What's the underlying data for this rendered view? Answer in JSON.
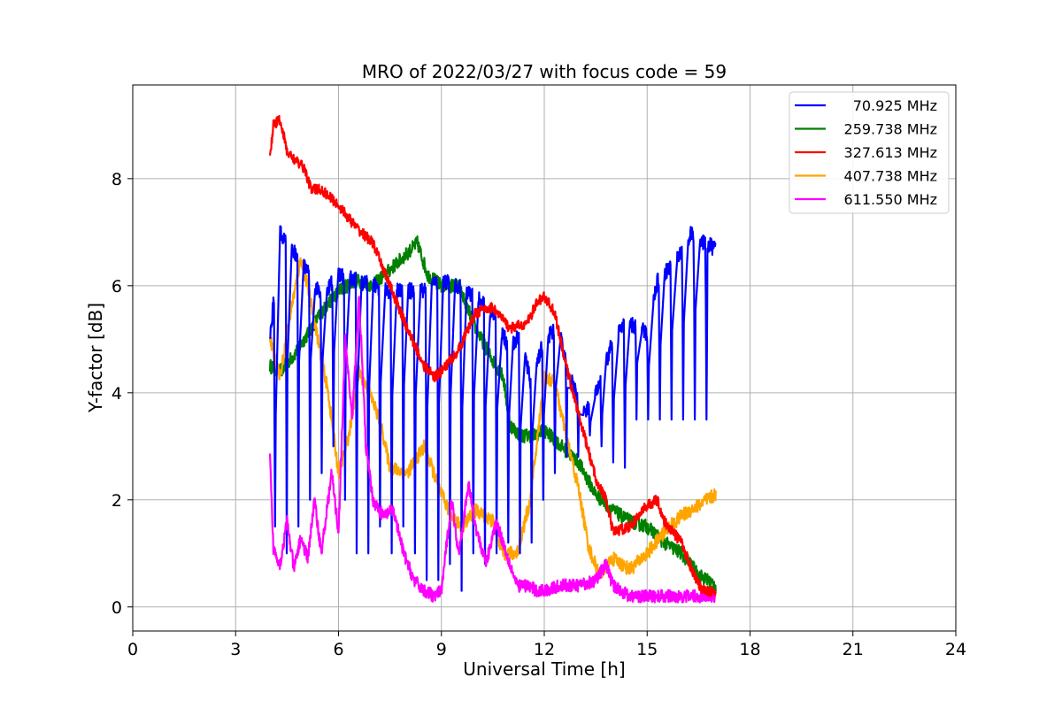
{
  "chart_data": {
    "type": "line",
    "title": "MRO of 2022/03/27 with focus code = 59",
    "xlabel": "Universal Time [h]",
    "ylabel": "Y-factor [dB]",
    "xlim": [
      0,
      24
    ],
    "ylim": [
      -0.45,
      9.75
    ],
    "xticks": [
      0,
      3,
      6,
      9,
      12,
      15,
      18,
      21,
      24
    ],
    "yticks": [
      0,
      2,
      4,
      6,
      8
    ],
    "grid": true,
    "legend_position": "top-right",
    "series": [
      {
        "name": "70.925 MHz",
        "color": "#0000ff",
        "x": [
          4.0,
          4.3,
          4.6,
          5.0,
          5.5,
          6.0,
          6.5,
          7.0,
          7.5,
          8.0,
          8.5,
          9.0,
          9.5,
          10.0,
          10.5,
          11.0,
          11.3,
          11.6,
          12.0,
          12.4,
          12.8,
          13.2,
          13.6,
          14.0,
          14.4,
          14.8,
          15.0,
          15.3,
          15.6,
          16.0,
          16.3,
          16.6,
          17.0
        ],
        "y": [
          5.0,
          7.0,
          6.7,
          6.4,
          5.8,
          6.2,
          6.1,
          6.0,
          5.9,
          5.9,
          5.9,
          6.1,
          6.0,
          5.8,
          5.5,
          4.8,
          5.1,
          4.2,
          5.0,
          5.2,
          4.2,
          3.6,
          4.1,
          5.0,
          5.3,
          5.2,
          5.1,
          6.1,
          6.3,
          6.6,
          7.0,
          6.8,
          6.7
        ],
        "dip_period": 0.34,
        "dip_floor": [
          1.5,
          1.0,
          1.5,
          2.0,
          2.5,
          3.0,
          2.0,
          1.0,
          1.0,
          1.5,
          1.0,
          1.5,
          1.0,
          0.5,
          0.5,
          0.8,
          0.3,
          1.0,
          0.8,
          1.0,
          1.2,
          1.0,
          1.2,
          2.0,
          2.5,
          2.8,
          2.8,
          3.2,
          3.0,
          2.7,
          2.6,
          3.5
        ],
        "noise": 0.15
      },
      {
        "name": "259.738 MHz",
        "color": "#008000",
        "x": [
          4.0,
          4.3,
          4.7,
          5.0,
          5.5,
          6.0,
          6.5,
          7.0,
          7.5,
          8.0,
          8.3,
          8.6,
          9.0,
          9.5,
          10.0,
          10.5,
          10.8,
          11.0,
          11.3,
          11.7,
          12.0,
          12.5,
          13.0,
          13.5,
          14.0,
          14.5,
          15.0,
          15.5,
          16.0,
          16.5,
          17.0
        ],
        "y": [
          4.5,
          4.4,
          4.7,
          5.0,
          5.5,
          5.9,
          6.1,
          6.0,
          6.3,
          6.6,
          6.8,
          6.2,
          6.0,
          6.0,
          5.2,
          4.6,
          4.3,
          3.4,
          3.2,
          3.2,
          3.3,
          3.0,
          2.7,
          2.1,
          1.8,
          1.6,
          1.5,
          1.2,
          1.0,
          0.6,
          0.4
        ],
        "noise": 0.13
      },
      {
        "name": "327.613 MHz",
        "color": "#ff0000",
        "x": [
          4.0,
          4.1,
          4.3,
          4.5,
          4.8,
          5.0,
          5.2,
          5.5,
          6.0,
          6.5,
          7.0,
          7.5,
          8.0,
          8.5,
          8.8,
          9.0,
          9.5,
          10.0,
          10.5,
          11.0,
          11.5,
          11.8,
          12.0,
          12.3,
          12.6,
          13.0,
          13.5,
          13.8,
          14.0,
          14.5,
          15.0,
          15.3,
          15.5,
          16.0,
          16.3,
          16.6,
          17.0
        ],
        "y": [
          8.4,
          9.0,
          9.1,
          8.5,
          8.3,
          8.2,
          7.8,
          7.8,
          7.5,
          7.1,
          6.8,
          6.0,
          5.2,
          4.5,
          4.3,
          4.4,
          4.8,
          5.5,
          5.6,
          5.2,
          5.3,
          5.7,
          5.8,
          5.5,
          4.6,
          3.6,
          2.4,
          2.0,
          1.4,
          1.5,
          1.9,
          2.0,
          1.6,
          1.2,
          0.7,
          0.3,
          0.3
        ],
        "noise": 0.1
      },
      {
        "name": "407.738 MHz",
        "color": "#ffa500",
        "x": [
          4.0,
          4.3,
          4.6,
          4.9,
          5.1,
          5.4,
          5.7,
          6.0,
          6.3,
          6.6,
          6.9,
          7.2,
          7.5,
          8.0,
          8.5,
          9.0,
          9.3,
          9.6,
          10.0,
          10.5,
          10.8,
          11.2,
          11.6,
          12.0,
          12.3,
          12.6,
          13.0,
          13.3,
          13.6,
          14.0,
          14.5,
          15.0,
          15.5,
          16.0,
          16.5,
          17.0
        ],
        "y": [
          5.0,
          4.3,
          5.5,
          6.5,
          6.0,
          5.0,
          4.0,
          2.5,
          3.2,
          4.4,
          4.0,
          3.5,
          2.6,
          2.5,
          3.0,
          2.1,
          1.7,
          1.5,
          1.8,
          1.6,
          1.0,
          1.0,
          2.0,
          4.3,
          4.2,
          3.3,
          2.2,
          1.1,
          0.6,
          0.9,
          0.7,
          1.0,
          1.4,
          1.7,
          1.9,
          2.1
        ],
        "noise": 0.13
      },
      {
        "name": "611.550 MHz",
        "color": "#ff00ff",
        "x": [
          4.0,
          4.1,
          4.3,
          4.5,
          4.7,
          4.9,
          5.1,
          5.3,
          5.5,
          5.8,
          6.0,
          6.2,
          6.4,
          6.6,
          6.8,
          7.0,
          7.3,
          7.6,
          7.9,
          8.2,
          8.5,
          8.8,
          9.0,
          9.3,
          9.5,
          9.8,
          10.0,
          10.3,
          10.6,
          10.9,
          11.2,
          11.5,
          11.8,
          12.0,
          12.5,
          13.0,
          13.5,
          13.8,
          14.0,
          14.5,
          15.0,
          15.5,
          16.0,
          16.5,
          17.0
        ],
        "y": [
          2.8,
          1.1,
          0.8,
          1.6,
          0.7,
          1.3,
          0.9,
          2.0,
          1.0,
          2.5,
          1.4,
          5.0,
          3.5,
          5.8,
          3.0,
          2.0,
          1.7,
          1.8,
          1.0,
          0.5,
          0.3,
          0.2,
          0.3,
          2.0,
          1.0,
          2.3,
          1.5,
          0.8,
          1.6,
          1.0,
          0.4,
          0.4,
          0.3,
          0.3,
          0.4,
          0.4,
          0.5,
          0.8,
          0.4,
          0.2,
          0.2,
          0.2,
          0.2,
          0.2,
          0.2
        ],
        "noise": 0.12
      }
    ]
  }
}
